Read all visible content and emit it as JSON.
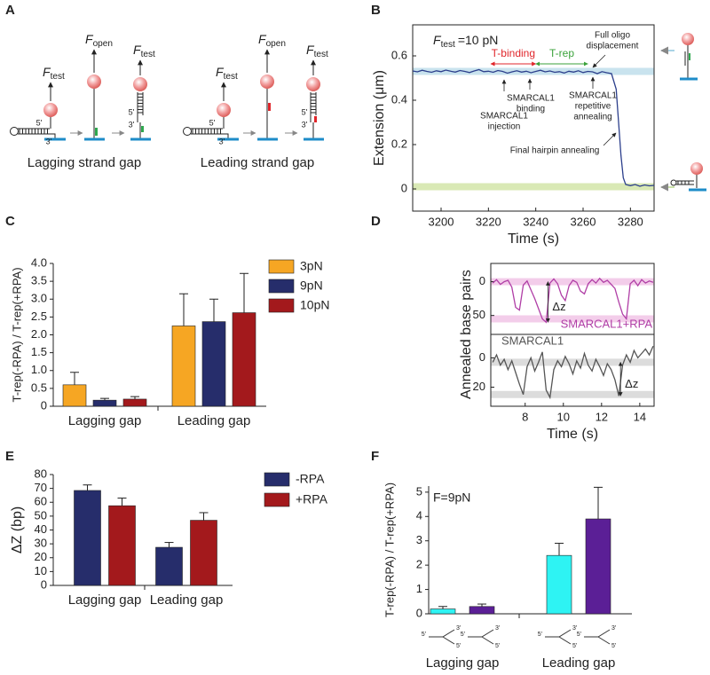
{
  "panel_labels": [
    "A",
    "B",
    "C",
    "D",
    "E",
    "F"
  ],
  "panel_a": {
    "diagrams": [
      {
        "title": "Lagging strand gap",
        "forces": [
          {
            "symbol": "F",
            "subscript": "test"
          },
          {
            "symbol": "F",
            "subscript": "open"
          },
          {
            "symbol": "F",
            "subscript": "test"
          }
        ],
        "ends": [
          "5'",
          "3'",
          "5'",
          "3'"
        ],
        "gap_color": "#2fa84f"
      },
      {
        "title": "Leading strand gap",
        "forces": [
          {
            "symbol": "F",
            "subscript": "test"
          },
          {
            "symbol": "F",
            "subscript": "open"
          },
          {
            "symbol": "F",
            "subscript": "test"
          }
        ],
        "ends": [
          "5'",
          "3'",
          "5'",
          "3'"
        ],
        "gap_color": "#e0262b"
      }
    ]
  },
  "chart_data": [
    {
      "type": "line",
      "xlabel": "Time (s)",
      "ylabel": "Extension (μm)",
      "force_label": {
        "symbol": "F",
        "subscript": "test",
        "text": "=10 pN"
      },
      "x": [
        3188,
        3190,
        3192,
        3194,
        3196,
        3198,
        3200,
        3202,
        3204,
        3206,
        3208,
        3210,
        3212,
        3214,
        3216,
        3218,
        3220,
        3222,
        3224,
        3226,
        3228,
        3230,
        3232,
        3234,
        3236,
        3238,
        3240,
        3242,
        3244,
        3246,
        3248,
        3250,
        3252,
        3254,
        3256,
        3258,
        3260,
        3262,
        3264,
        3266,
        3268,
        3270,
        3272,
        3274,
        3275,
        3276,
        3277,
        3278,
        3280,
        3282,
        3284,
        3286,
        3288,
        3290
      ],
      "series": [
        {
          "color": "#2c3f8c",
          "values": [
            0.532,
            0.528,
            0.535,
            0.53,
            0.526,
            0.533,
            0.529,
            0.536,
            0.531,
            0.527,
            0.534,
            0.53,
            0.525,
            0.532,
            0.538,
            0.529,
            0.531,
            0.526,
            0.534,
            0.53,
            0.522,
            0.528,
            0.533,
            0.527,
            0.531,
            0.524,
            0.53,
            0.535,
            0.528,
            0.532,
            0.526,
            0.529,
            0.523,
            0.531,
            0.527,
            0.533,
            0.525,
            0.53,
            0.528,
            0.52,
            0.529,
            0.524,
            0.52,
            0.45,
            0.3,
            0.15,
            0.05,
            0.02,
            0.015,
            0.02,
            0.012,
            0.018,
            0.014,
            0.016
          ]
        }
      ],
      "xlim": [
        3188,
        3290
      ],
      "ylim": [
        -0.1,
        0.74
      ],
      "xticks": [
        3200,
        3220,
        3240,
        3260,
        3280
      ],
      "yticks": [
        0,
        0.2,
        0.4,
        0.6
      ],
      "y_inverted": false,
      "bands": [
        0.53,
        0.01
      ],
      "band_colors": [
        "#c9e3ee",
        "#d9e9b5"
      ],
      "ranges": [
        {
          "label": "T-binding",
          "start": 3221,
          "end": 3240,
          "color": "#e0262b"
        },
        {
          "label": "T-rep",
          "start": 3240,
          "end": 3262,
          "color": "#3aa23a"
        }
      ],
      "annotations": [
        {
          "lines": [
            "Full oligo",
            "displacement"
          ]
        },
        {
          "lines": [
            "SMARCAL1",
            "binding"
          ]
        },
        {
          "lines": [
            "SMARCAL1",
            "injection"
          ]
        },
        {
          "lines": [
            "SMARCAL1",
            "repetitive",
            "annealing"
          ]
        },
        {
          "lines": [
            "Final hairpin annealing"
          ]
        }
      ]
    },
    {
      "type": "bar",
      "ylabel": "T-rep(-RPA) / T-rep(+RPA)",
      "categories": [
        "Lagging gap",
        "Leading gap"
      ],
      "series": [
        {
          "name": "3pN",
          "color": "#f6a623",
          "values": [
            0.6,
            2.25
          ],
          "errors": [
            0.35,
            0.9
          ]
        },
        {
          "name": "9pN",
          "color": "#262d6b",
          "values": [
            0.17,
            2.37
          ],
          "errors": [
            0.05,
            0.63
          ]
        },
        {
          "name": "10pN",
          "color": "#a3191c",
          "values": [
            0.2,
            2.62
          ],
          "errors": [
            0.07,
            1.1
          ]
        }
      ],
      "ylim": [
        0,
        4
      ],
      "yticks": [
        0,
        0.5,
        {
          "value": 1,
          "label": "1.0"
        },
        1.5,
        {
          "value": 2,
          "label": "2.0"
        },
        2.5,
        {
          "value": 3,
          "label": "3.0"
        },
        3.5,
        {
          "value": 4,
          "label": "4.0"
        }
      ],
      "legend": "right"
    },
    {
      "type": "line",
      "ylabel": "Annealed base pairs",
      "x": [
        6.3,
        6.5,
        6.7,
        6.9,
        7.1,
        7.3,
        7.5,
        7.7,
        7.9,
        8.1,
        8.3,
        8.5,
        8.7,
        8.9,
        9.1,
        9.3,
        9.5,
        9.7,
        9.9,
        10.1,
        10.3,
        10.5,
        10.7,
        10.9,
        11.1,
        11.3,
        11.5,
        11.7,
        11.9,
        12.1,
        12.3,
        12.5,
        12.7,
        12.9,
        13.1,
        13.3,
        13.5,
        13.7,
        13.9,
        14.1,
        14.3,
        14.5,
        14.7
      ],
      "series": [
        {
          "name": "SMARCAL1+RPA",
          "color": "#b03ea6",
          "values": [
            2,
            -3,
            4,
            0,
            -2,
            8,
            38,
            42,
            5,
            -1,
            12,
            25,
            40,
            55,
            60,
            2,
            -4,
            3,
            20,
            28,
            6,
            -2,
            1,
            14,
            18,
            3,
            -3,
            2,
            -5,
            1,
            -2,
            4,
            10,
            30,
            48,
            55,
            3,
            -2,
            6,
            -3,
            2,
            -1,
            1
          ]
        }
      ],
      "xlim": [
        6.2,
        14.75
      ],
      "ylim": [
        -27,
        78
      ],
      "yticks": [
        0,
        50
      ],
      "y_inverted": true,
      "bands": [
        0,
        55
      ],
      "band_colors": [
        "#f3cdea",
        "#f3cdea"
      ],
      "annotation": "Δz"
    },
    {
      "type": "line",
      "xlabel": "Time (s)",
      "x": [
        6.3,
        6.5,
        6.7,
        6.9,
        7.1,
        7.3,
        7.5,
        7.7,
        7.9,
        8.1,
        8.3,
        8.5,
        8.7,
        8.9,
        9.1,
        9.3,
        9.5,
        9.7,
        9.9,
        10.1,
        10.3,
        10.5,
        10.7,
        10.9,
        11.1,
        11.3,
        11.5,
        11.7,
        11.9,
        12.1,
        12.3,
        12.5,
        12.7,
        12.9,
        13.1,
        13.3,
        13.5,
        13.7,
        13.9,
        14.1,
        14.3,
        14.5,
        14.7
      ],
      "series": [
        {
          "name": "SMARCAL1",
          "color": "#555555",
          "values": [
            3,
            -2,
            5,
            1,
            8,
            2,
            10,
            18,
            25,
            6,
            0,
            9,
            3,
            -4,
            22,
            27,
            8,
            2,
            6,
            -1,
            4,
            11,
            2,
            7,
            -3,
            5,
            9,
            1,
            6,
            12,
            4,
            8,
            15,
            26,
            5,
            -2,
            3,
            -5,
            0,
            -3,
            -6,
            -2,
            -8
          ]
        }
      ],
      "xlim": [
        6.2,
        14.75
      ],
      "ylim": [
        -16,
        33
      ],
      "xticks": [
        8,
        10,
        12,
        14
      ],
      "yticks": [
        0,
        20
      ],
      "y_inverted": true,
      "bands": [
        3,
        25
      ],
      "band_colors": [
        "#dcdcdc",
        "#dcdcdc"
      ],
      "annotation": "Δz"
    },
    {
      "type": "bar",
      "ylabel": "ΔZ (bp)",
      "categories": [
        "Lagging gap",
        "Leading gap"
      ],
      "series": [
        {
          "name": "-RPA",
          "color": "#262d6b",
          "values": [
            68.5,
            27.5
          ],
          "errors": [
            4,
            3.5
          ]
        },
        {
          "name": "+RPA",
          "color": "#a3191c",
          "values": [
            57.5,
            47
          ],
          "errors": [
            5.5,
            5.5
          ]
        }
      ],
      "ylim": [
        0,
        80
      ],
      "yticks": [
        0,
        10,
        20,
        30,
        40,
        50,
        60,
        70,
        80
      ],
      "legend": "right"
    },
    {
      "type": "bar",
      "ylabel": "T-rep(-RPA) / T-rep(+RPA)",
      "annotation": "F=9pN",
      "categories": [
        "Lagging gap",
        "Leading gap"
      ],
      "series": [
        {
          "color": "#2ef3f3",
          "values": [
            0.2,
            2.4
          ],
          "errors": [
            0.1,
            0.5
          ]
        },
        {
          "color": "#5b1f96",
          "values": [
            0.3,
            3.9
          ],
          "errors": [
            0.1,
            1.3
          ]
        }
      ],
      "ylim": [
        0,
        5.25
      ],
      "yticks": [
        0,
        1,
        2,
        3,
        4,
        5
      ],
      "icons": [
        [
          "5'",
          "3'",
          "5'"
        ],
        [
          "5'",
          "3'",
          "5'"
        ],
        [
          "5'",
          "3'",
          "5'"
        ],
        [
          "5'",
          "3'",
          "5'"
        ]
      ]
    }
  ]
}
